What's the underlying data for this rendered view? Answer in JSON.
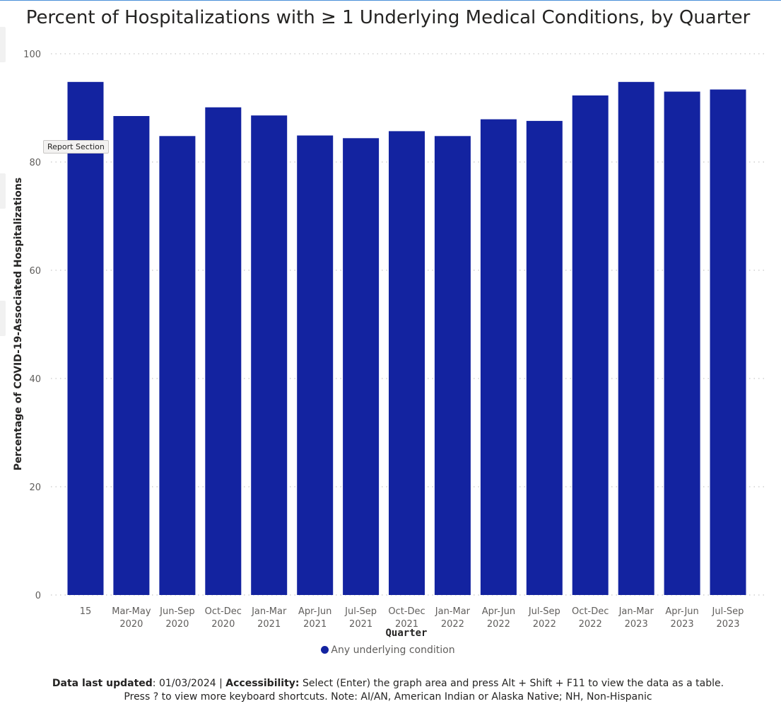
{
  "chart_data": {
    "type": "bar",
    "title": "Percent of Hospitalizations with ≥ 1 Underlying Medical Conditions, by Quarter",
    "xlabel": "Quarter",
    "ylabel": "Percentage of COVID-19-Associated Hospitalizations",
    "ylim": [
      0,
      100
    ],
    "yticks": [
      0,
      20,
      40,
      60,
      80,
      100
    ],
    "categories": [
      [
        "15",
        ""
      ],
      [
        "Mar-May",
        "2020"
      ],
      [
        "Jun-Sep",
        "2020"
      ],
      [
        "Oct-Dec",
        "2020"
      ],
      [
        "Jan-Mar",
        "2021"
      ],
      [
        "Apr-Jun",
        "2021"
      ],
      [
        "Jul-Sep",
        "2021"
      ],
      [
        "Oct-Dec",
        "2021"
      ],
      [
        "Jan-Mar",
        "2022"
      ],
      [
        "Apr-Jun",
        "2022"
      ],
      [
        "Jul-Sep",
        "2022"
      ],
      [
        "Oct-Dec",
        "2022"
      ],
      [
        "Jan-Mar",
        "2023"
      ],
      [
        "Apr-Jun",
        "2023"
      ],
      [
        "Jul-Sep",
        "2023"
      ]
    ],
    "series": [
      {
        "name": "Any underlying condition",
        "color": "#1323a0",
        "values": [
          94.8,
          88.5,
          84.8,
          90.1,
          88.6,
          84.9,
          84.4,
          85.7,
          84.8,
          87.9,
          87.6,
          92.3,
          94.8,
          93.0,
          93.4
        ]
      }
    ],
    "legend": "bottom-center",
    "grid": true
  },
  "tooltip": {
    "label": "Report Section"
  },
  "footer": {
    "updated_label": "Data last updated",
    "updated_value": ": 01/03/2024 | ",
    "accessibility_label": "Accessibility:",
    "accessibility_text": " Select (Enter) the graph area and press Alt + Shift + F11 to view the data as a table.",
    "line2": "Press ? to view more keyboard shortcuts. Note: AI/AN, American Indian or Alaska Native; NH, Non-Hispanic"
  },
  "colors": {
    "bar": "#1323a0",
    "grid": "#c8c8c8",
    "axis_text": "#605e5c"
  }
}
